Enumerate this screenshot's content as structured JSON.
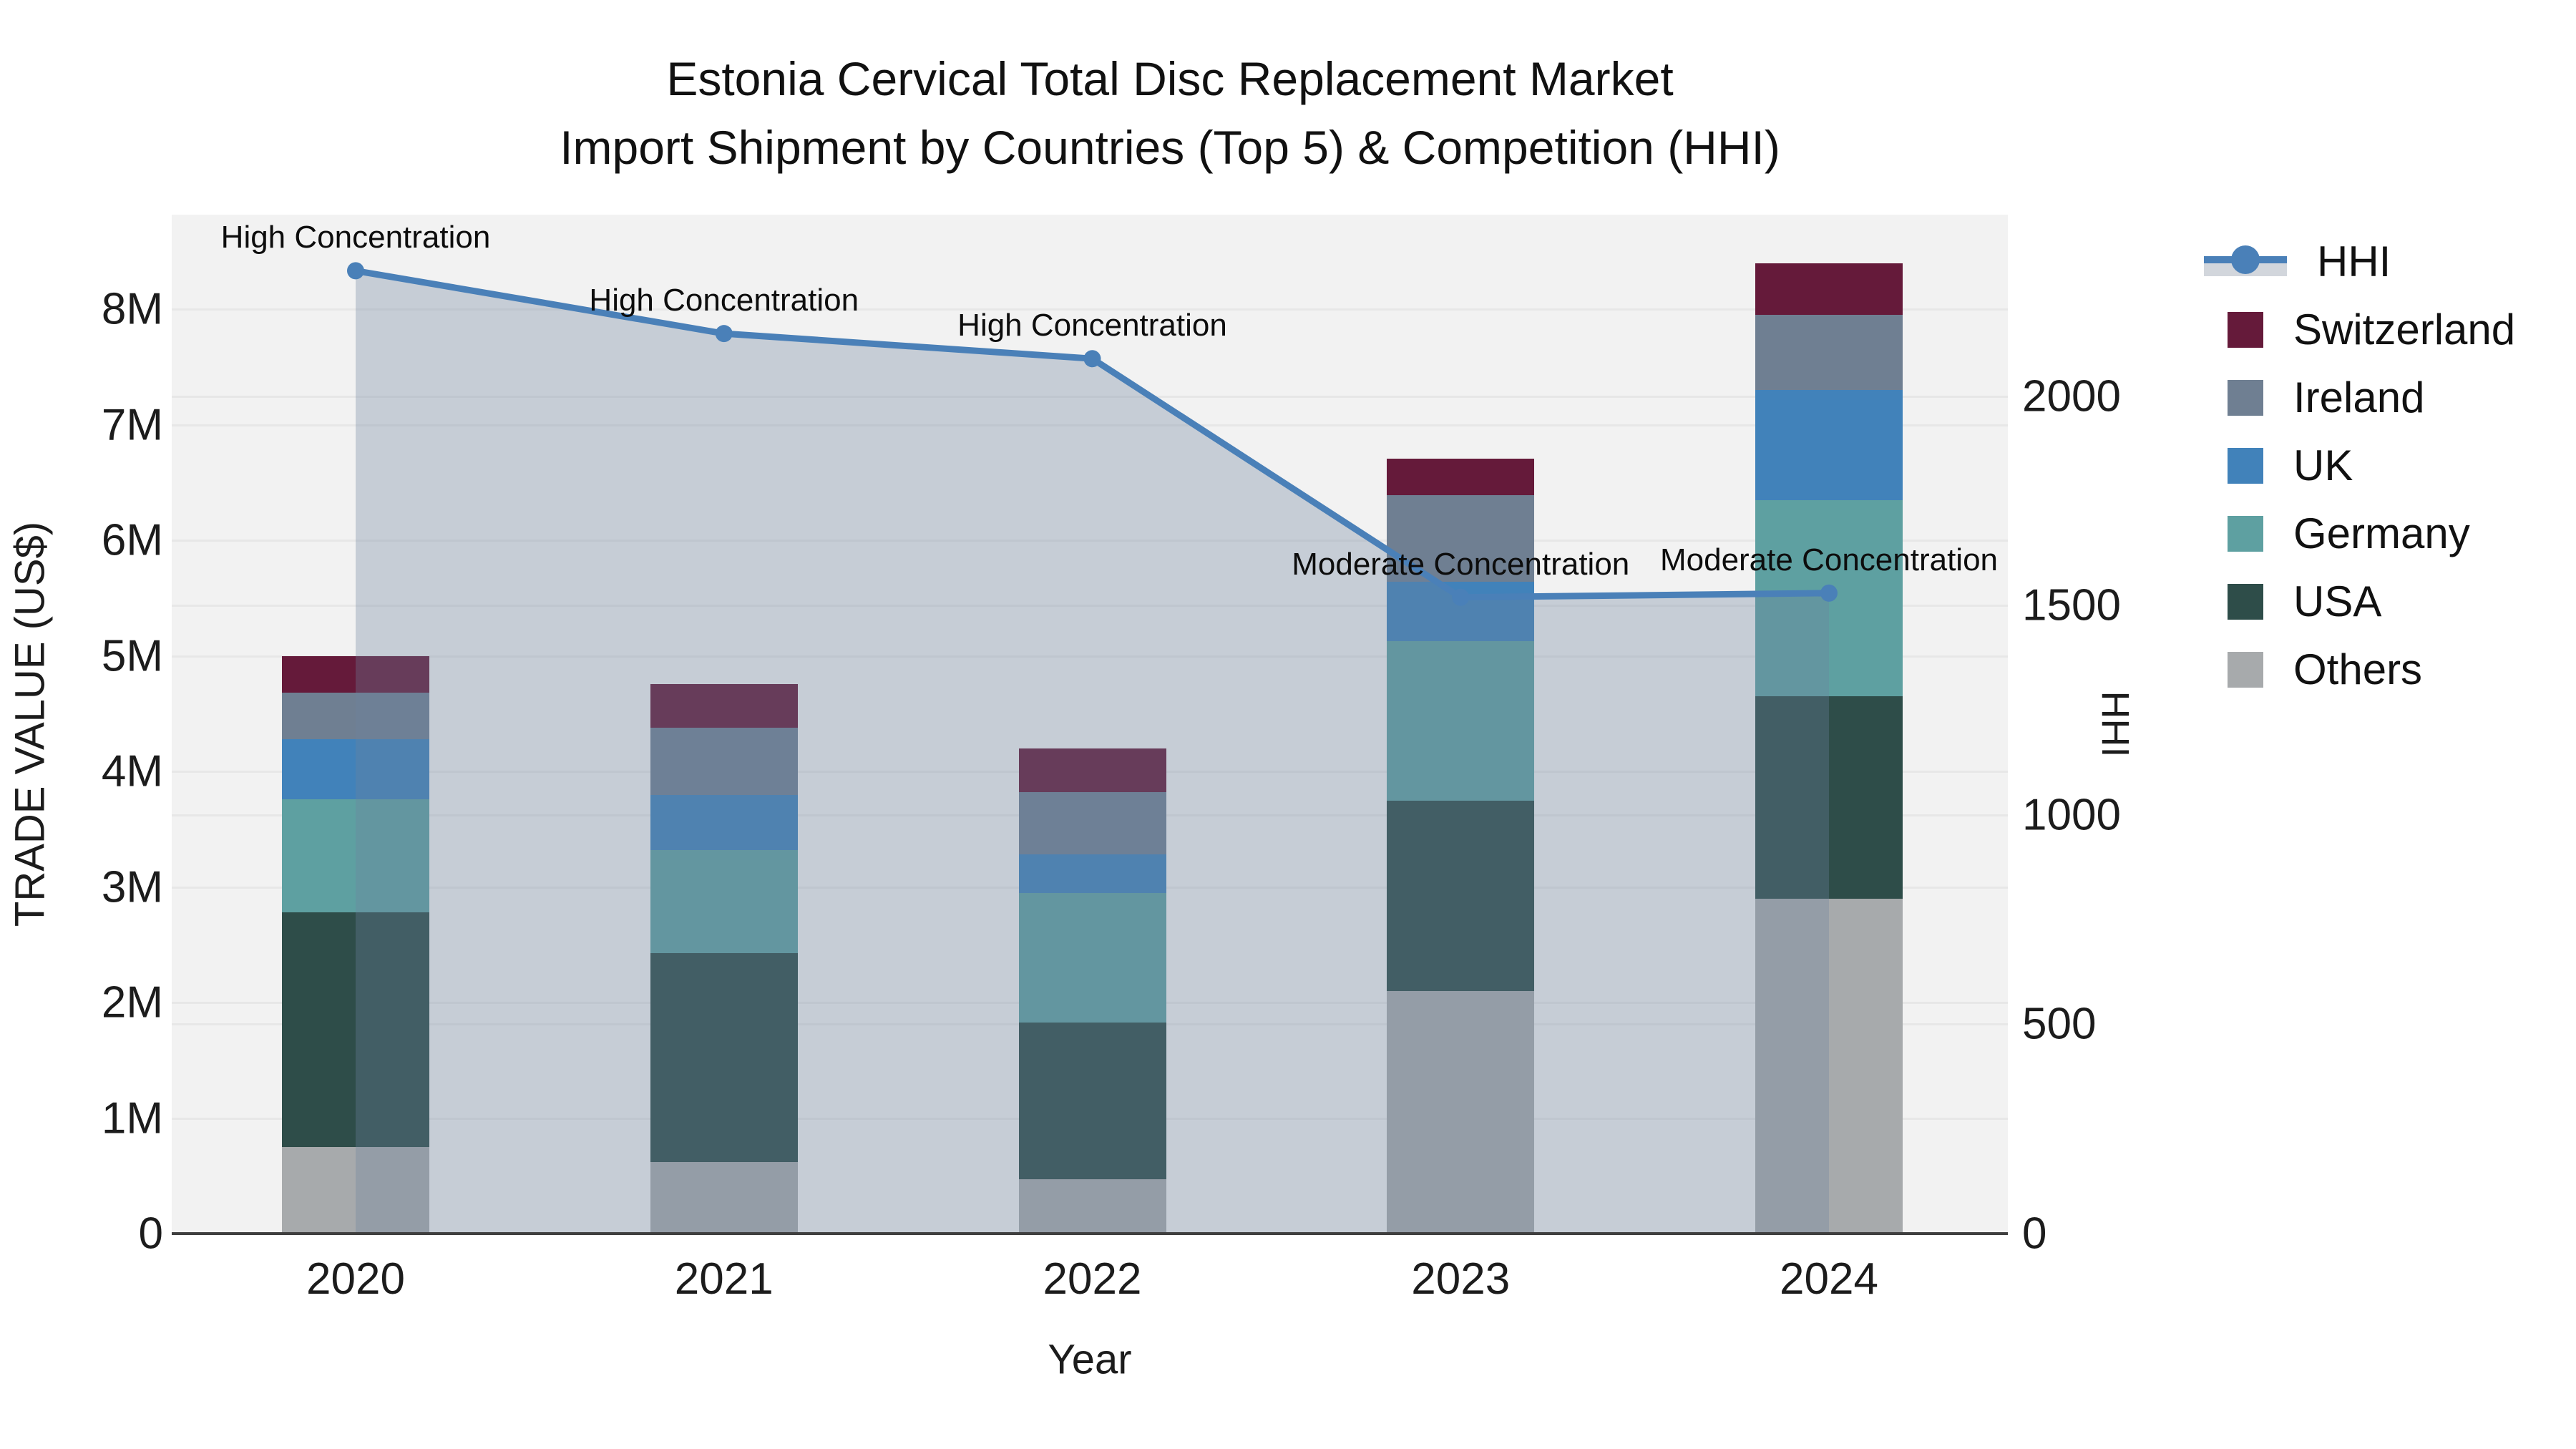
{
  "title": {
    "line1": "Estonia Cervical Total Disc Replacement Market",
    "line2": "Import Shipment by Countries (Top 5) & Competition (HHI)"
  },
  "axes": {
    "left": {
      "title": "TRADE VALUE (US$)",
      "tick_labels": [
        "0",
        "1M",
        "2M",
        "3M",
        "4M",
        "5M",
        "6M",
        "7M",
        "8M"
      ],
      "tick_values_musd": [
        0,
        1,
        2,
        3,
        4,
        5,
        6,
        7,
        8
      ],
      "max_musd": 8.82
    },
    "right": {
      "title": "HHI",
      "tick_labels": [
        "0",
        "500",
        "1000",
        "1500",
        "2000"
      ],
      "tick_values": [
        0,
        500,
        1000,
        1500,
        2000
      ],
      "max": 2434
    },
    "x": {
      "title": "Year",
      "tick_labels": [
        "2020",
        "2021",
        "2022",
        "2023",
        "2024"
      ]
    }
  },
  "legend": {
    "items": [
      {
        "label": "HHI",
        "type": "line",
        "color": "#4a80b8"
      },
      {
        "label": "Switzerland",
        "type": "swatch",
        "color": "#651a3a"
      },
      {
        "label": "Ireland",
        "type": "swatch",
        "color": "#6f7f92"
      },
      {
        "label": "UK",
        "type": "swatch",
        "color": "#4182ba"
      },
      {
        "label": "Germany",
        "type": "swatch",
        "color": "#5ea0a1"
      },
      {
        "label": "USA",
        "type": "swatch",
        "color": "#2e4d49"
      },
      {
        "label": "Others",
        "type": "swatch",
        "color": "#a7aaac"
      }
    ]
  },
  "colors": {
    "plot_background": "#f2f2f2",
    "gridline": "#e7e7e7",
    "axis_line": "#3f3f3f",
    "hhi_line": "#4a80b8",
    "hhi_area_fill": "rgba(110,130,158,0.33)"
  },
  "chart_data": {
    "type": "combo",
    "bar_type": "stacked",
    "title": "Estonia Cervical Total Disc Replacement Market — Import Shipment by Countries (Top 5) & Competition (HHI)",
    "xlabel": "Year",
    "ylabel_left": "TRADE VALUE (US$)",
    "ylabel_right": "HHI",
    "categories": [
      "2020",
      "2021",
      "2022",
      "2023",
      "2024"
    ],
    "bar_unit": "million US$",
    "series": [
      {
        "name": "Others",
        "color": "#a7aaac",
        "values": [
          0.75,
          0.62,
          0.47,
          2.1,
          2.9
        ]
      },
      {
        "name": "USA",
        "color": "#2e4d49",
        "values": [
          2.03,
          1.81,
          1.36,
          1.65,
          1.75
        ]
      },
      {
        "name": "Germany",
        "color": "#5ea0a1",
        "values": [
          0.98,
          0.89,
          1.12,
          1.38,
          1.7
        ]
      },
      {
        "name": "UK",
        "color": "#4182ba",
        "values": [
          0.52,
          0.48,
          0.33,
          0.51,
          0.95
        ]
      },
      {
        "name": "Ireland",
        "color": "#6f7f92",
        "values": [
          0.4,
          0.58,
          0.54,
          0.75,
          0.65
        ]
      },
      {
        "name": "Switzerland",
        "color": "#651a3a",
        "values": [
          0.32,
          0.38,
          0.38,
          0.32,
          0.45
        ]
      }
    ],
    "bar_totals_musd": [
      5.0,
      4.76,
      4.2,
      6.71,
      8.4
    ],
    "line_series": {
      "name": "HHI",
      "axis": "right",
      "color": "#4a80b8",
      "fill": "to-zero",
      "values": [
        2300,
        2150,
        2090,
        1520,
        1530
      ]
    },
    "annotations": [
      {
        "x": "2020",
        "label": "High Concentration"
      },
      {
        "x": "2021",
        "label": "High Concentration"
      },
      {
        "x": "2022",
        "label": "High Concentration"
      },
      {
        "x": "2023",
        "label": "Moderate Concentration"
      },
      {
        "x": "2024",
        "label": "Moderate Concentration"
      }
    ],
    "ylim_left_musd": [
      0,
      8.82
    ],
    "ylim_right": [
      0,
      2434
    ],
    "grid": true,
    "legend_position": "right"
  }
}
